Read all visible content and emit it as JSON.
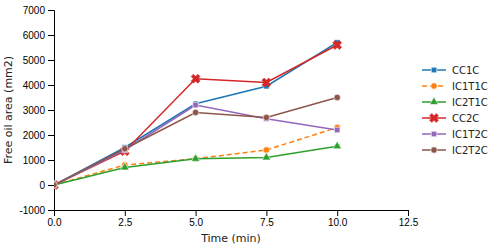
{
  "chart_data": {
    "type": "line",
    "x": [
      0,
      2.5,
      5,
      7.5,
      10
    ],
    "series": [
      {
        "name": "CC1C",
        "values": [
          0,
          1500,
          3250,
          3950,
          5700
        ],
        "errors": [
          10,
          60,
          80,
          80,
          70
        ],
        "marker": "square",
        "line_style": "solid"
      },
      {
        "name": "IC1T1C",
        "values": [
          0,
          800,
          1050,
          1400,
          2300
        ],
        "errors": [
          10,
          40,
          50,
          50,
          60
        ],
        "marker": "circle",
        "line_style": "dashed"
      },
      {
        "name": "IC2T1C",
        "values": [
          0,
          700,
          1050,
          1100,
          1550
        ],
        "errors": [
          10,
          35,
          45,
          45,
          55
        ],
        "marker": "triangle",
        "line_style": "solid"
      },
      {
        "name": "CC2C",
        "values": [
          0,
          1350,
          4250,
          4100,
          5600
        ],
        "errors": [
          10,
          55,
          90,
          80,
          75
        ],
        "marker": "x",
        "line_style": "solid"
      },
      {
        "name": "IC1T2C",
        "values": [
          0,
          1400,
          3200,
          2650,
          2200
        ],
        "errors": [
          10,
          55,
          75,
          65,
          60
        ],
        "marker": "square",
        "line_style": "solid"
      },
      {
        "name": "IC2T2C",
        "values": [
          0,
          1450,
          2900,
          2700,
          3500
        ],
        "errors": [
          10,
          55,
          70,
          65,
          75
        ],
        "marker": "circle",
        "line_style": "solid"
      }
    ],
    "xlabel": "Time (min)",
    "ylabel": "Free oil area (mm2)",
    "xlim": [
      0,
      12.5
    ],
    "xticks": [
      {
        "value": 0,
        "label": "0.0"
      },
      {
        "value": 2.5,
        "label": "2.5"
      },
      {
        "value": 5,
        "label": "5.0"
      },
      {
        "value": 7.5,
        "label": "7.5"
      },
      {
        "value": 10,
        "label": "10.0"
      },
      {
        "value": 12.5,
        "label": "12.5"
      }
    ],
    "ylim": [
      -1000,
      7000
    ],
    "yticks": [
      -1000,
      0,
      1000,
      2000,
      3000,
      4000,
      5000,
      6000,
      7000
    ],
    "grid": false,
    "legend": "right"
  }
}
